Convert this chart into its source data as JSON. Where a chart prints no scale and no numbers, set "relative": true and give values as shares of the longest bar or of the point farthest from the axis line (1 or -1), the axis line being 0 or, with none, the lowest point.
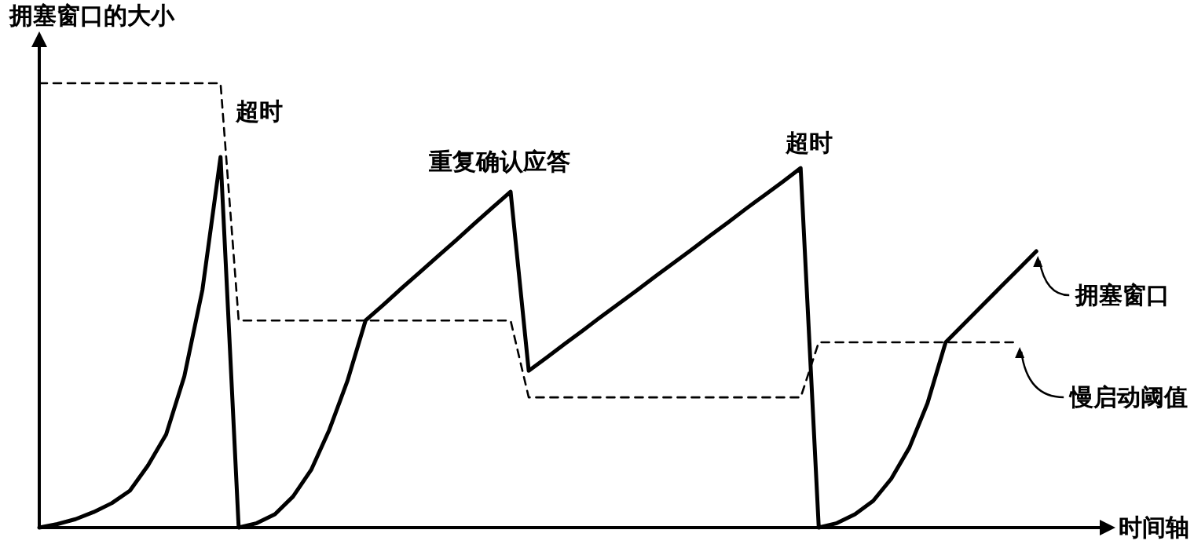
{
  "chart_data": {
    "type": "line",
    "relative": true,
    "xlabel": "时间轴",
    "ylabel": "拥塞窗口的大小",
    "marker": "none",
    "categories": [
      null,
      null,
      null,
      null,
      null,
      null,
      null,
      null,
      null,
      null,
      null,
      null,
      null,
      null,
      null,
      null,
      null,
      null,
      null,
      null,
      null,
      null,
      null,
      null,
      null,
      null,
      null,
      null,
      null,
      null,
      null,
      null,
      null,
      null,
      null,
      null,
      null,
      null,
      null,
      null,
      null,
      null,
      null,
      null,
      null,
      null,
      null,
      null,
      null,
      null,
      null,
      null,
      null,
      null,
      null,
      null
    ],
    "series": [
      {
        "name": "拥塞窗口",
        "color": "#000000",
        "line_style": "solid",
        "values": [
          0,
          0.008,
          0.019,
          0.035,
          0.055,
          0.083,
          0.14,
          0.21,
          0.34,
          0.535,
          0.834,
          0,
          0.01,
          0.03,
          0.07,
          0.13,
          0.22,
          0.33,
          0.466,
          0.502,
          0.539,
          0.575,
          0.611,
          0.647,
          0.684,
          0.72,
          0.756,
          0.353,
          0.383,
          0.414,
          0.444,
          0.475,
          0.505,
          0.535,
          0.566,
          0.596,
          0.626,
          0.657,
          0.687,
          0.718,
          0.748,
          0.778,
          0.809,
          0,
          0.01,
          0.03,
          0.06,
          0.11,
          0.18,
          0.28,
          0.417,
          0.458,
          0.499,
          0.54,
          0.581,
          0.622
        ]
      },
      {
        "name": "慢启动阈值",
        "color": "#000000",
        "line_style": "dashed",
        "values": [
          1,
          1,
          1,
          1,
          1,
          1,
          1,
          1,
          1,
          1,
          1,
          0.466,
          0.466,
          0.466,
          0.466,
          0.466,
          0.466,
          0.466,
          0.466,
          0.466,
          0.466,
          0.466,
          0.466,
          0.466,
          0.466,
          0.466,
          0.466,
          0.293,
          0.293,
          0.293,
          0.293,
          0.293,
          0.293,
          0.293,
          0.293,
          0.293,
          0.293,
          0.293,
          0.293,
          0.293,
          0.293,
          0.293,
          0.293,
          0.417,
          0.417,
          0.417,
          0.417,
          0.417,
          0.417,
          0.417,
          0.417,
          0.417,
          0.417,
          0.417,
          0.417,
          null
        ]
      }
    ],
    "annotations": [
      "超时",
      "重复确认应答",
      "超时"
    ]
  }
}
